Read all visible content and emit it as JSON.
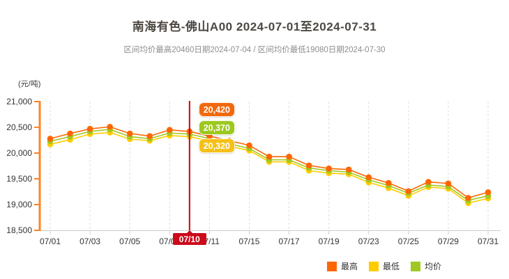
{
  "header": {
    "title": "南海有色-佛山A00 2024-07-01至2024-07-31",
    "subtitle": "区间均价最高20460日期2024-07-04 / 区间均价最低19080日期2024-07-30"
  },
  "chart_data": {
    "type": "line",
    "title": "南海有色-佛山A00 2024-07-01至2024-07-31",
    "ylabel": "(元/吨)",
    "xlabel": "",
    "ylim": [
      18500,
      21000
    ],
    "yticks": [
      "21,000",
      "20,500",
      "20,000",
      "19,500",
      "19,000",
      "18,500"
    ],
    "x": [
      "07/01",
      "07/02",
      "07/03",
      "07/04",
      "07/05",
      "07/08",
      "07/09",
      "07/10",
      "07/11",
      "07/12",
      "07/15",
      "07/16",
      "07/17",
      "07/18",
      "07/19",
      "07/22",
      "07/23",
      "07/24",
      "07/25",
      "07/26",
      "07/29",
      "07/30",
      "07/31"
    ],
    "xtick_labels": [
      "07/01",
      "07/03",
      "07/05",
      "07/09",
      "07/11",
      "07/15",
      "07/17",
      "07/19",
      "07/23",
      "07/25",
      "07/29",
      "07/31"
    ],
    "series": [
      {
        "name": "最高",
        "color": "#FF6600",
        "values": [
          20280,
          20380,
          20470,
          20510,
          20380,
          20330,
          20450,
          20420,
          20330,
          20240,
          20150,
          19930,
          19930,
          19760,
          19700,
          19680,
          19530,
          19420,
          19260,
          19440,
          19410,
          19130,
          19240
        ]
      },
      {
        "name": "最低",
        "color": "#FFCC00",
        "values": [
          20170,
          20260,
          20370,
          20400,
          20270,
          20240,
          20340,
          20320,
          20230,
          20130,
          20050,
          19830,
          19830,
          19660,
          19610,
          19590,
          19430,
          19320,
          19170,
          19340,
          19310,
          19030,
          19120
        ]
      },
      {
        "name": "均价",
        "color": "#A0C822",
        "values": [
          20230,
          20320,
          20420,
          20460,
          20320,
          20280,
          20390,
          20370,
          20280,
          20180,
          20090,
          19870,
          19870,
          19710,
          19660,
          19630,
          19480,
          19370,
          19220,
          19380,
          19350,
          19080,
          19170
        ]
      }
    ],
    "grid": "vertical-dashed",
    "grid_color": "#dddddd",
    "axis_color": "#ff8326",
    "x_axis_color": "#cccccc",
    "tick_label_color": "#333333",
    "legend_position": "bottom-right"
  },
  "highlight": {
    "date": "07/10",
    "line_color": "#cc0000",
    "box_color": "#cc0a1a",
    "tooltips": [
      {
        "series": "最高",
        "value": "20,420",
        "color": "#f2690d"
      },
      {
        "series": "均价",
        "value": "20,370",
        "color": "#9dc81e"
      },
      {
        "series": "最低",
        "value": "20,320",
        "color": "#f5c018"
      }
    ]
  },
  "legend": {
    "items": [
      {
        "label": "最高",
        "color": "#FF6600"
      },
      {
        "label": "最低",
        "color": "#FFCC00"
      },
      {
        "label": "均价",
        "color": "#A0C822"
      }
    ]
  }
}
